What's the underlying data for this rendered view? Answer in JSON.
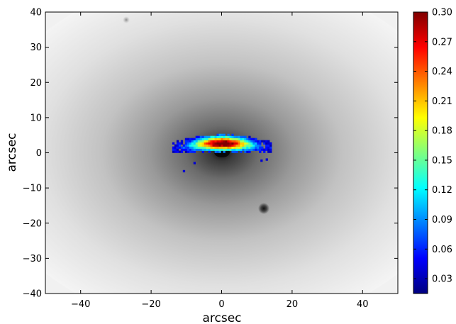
{
  "chart_data": {
    "type": "heatmap",
    "xlabel": "arcsec",
    "ylabel": "arcsec",
    "xlim": [
      -50,
      50
    ],
    "ylim": [
      -40,
      40
    ],
    "xticks": [
      -40,
      -20,
      0,
      20,
      40
    ],
    "xtick_labels": [
      "−40",
      "−20",
      "0",
      "20",
      "40"
    ],
    "yticks": [
      -40,
      -30,
      -20,
      -10,
      0,
      10,
      20,
      30,
      40
    ],
    "ytick_labels": [
      "−40",
      "−30",
      "−20",
      "−10",
      "0",
      "10",
      "20",
      "30",
      "40"
    ],
    "background": {
      "description": "greyscale galaxy light",
      "nucleus": {
        "x": 0,
        "y": 0
      },
      "point_sources": [
        {
          "x": 12,
          "y": -16
        },
        {
          "x": -27.5,
          "y": 38
        }
      ]
    },
    "overlay_map": {
      "x_range": [
        -14,
        14
      ],
      "y_range": [
        -3,
        5.5
      ],
      "value_peak": 0.3,
      "peak_location": {
        "x": 0,
        "y": 2.5
      }
    },
    "colorbar": {
      "colormap": "jet",
      "vmin": 0.015,
      "vmax": 0.3,
      "ticks": [
        0.03,
        0.06,
        0.09,
        0.12,
        0.15,
        0.18,
        0.21,
        0.24,
        0.27,
        0.3
      ],
      "tick_labels": [
        "0.03",
        "0.06",
        "0.09",
        "0.12",
        "0.15",
        "0.18",
        "0.21",
        "0.24",
        "0.27",
        "0.30"
      ],
      "colors": [
        "#00007f",
        "#0000ff",
        "#007fff",
        "#00ffff",
        "#7fff7f",
        "#ffff00",
        "#ff7f00",
        "#ff0000",
        "#7f0000"
      ]
    }
  }
}
